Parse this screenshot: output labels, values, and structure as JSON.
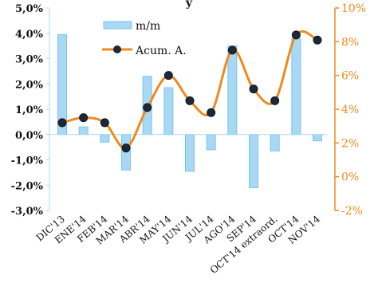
{
  "chart_data": {
    "type": "bar+line",
    "title": "y",
    "categories": [
      "DIC'13",
      "ENE'14",
      "FEB'14",
      "MAR'14",
      "ABR'14",
      "MAY'14",
      "JUN'14",
      "JUL'14",
      "AGO'14",
      "SEP'14",
      "OCT'14 extraord.",
      "OCT'14",
      "NOV'14"
    ],
    "series": [
      {
        "name": "m/m",
        "type": "bar",
        "axis": "left",
        "color": "#A9D8F5",
        "stroke": "#79C4EE",
        "values": [
          3.95,
          0.3,
          -0.3,
          -1.4,
          2.3,
          1.85,
          -1.45,
          -0.6,
          3.5,
          -2.1,
          -0.65,
          3.8,
          -0.25
        ]
      },
      {
        "name": "Acum. A.",
        "type": "line",
        "axis": "right",
        "color": "#F08A1D",
        "marker_color": "#1B2A3A",
        "values": [
          3.2,
          3.5,
          3.2,
          1.7,
          4.1,
          6.0,
          4.5,
          3.8,
          7.5,
          5.2,
          4.5,
          8.4,
          8.1
        ]
      }
    ],
    "left_axis": {
      "ylim": [
        -3.0,
        5.0
      ],
      "ticks": [
        5.0,
        4.0,
        3.0,
        2.0,
        1.0,
        0.0,
        -1.0,
        -2.0,
        -3.0
      ],
      "tick_labels": [
        "5,0%",
        "4,0%",
        "3,0%",
        "2,0%",
        "1,0%",
        "0,0%",
        "-1,0%",
        "-2,0%",
        "-3,0%"
      ]
    },
    "right_axis": {
      "ylim": [
        -2,
        10
      ],
      "ticks": [
        10,
        8,
        6,
        4,
        2,
        0,
        -2
      ],
      "tick_labels": [
        "10%",
        "8%",
        "6%",
        "4%",
        "2%",
        "0%",
        "-2%"
      ],
      "color": "#F08A1D"
    },
    "legend": {
      "placement": "top-center",
      "items": [
        "m/m",
        "Acum. A."
      ]
    },
    "grid": false
  }
}
